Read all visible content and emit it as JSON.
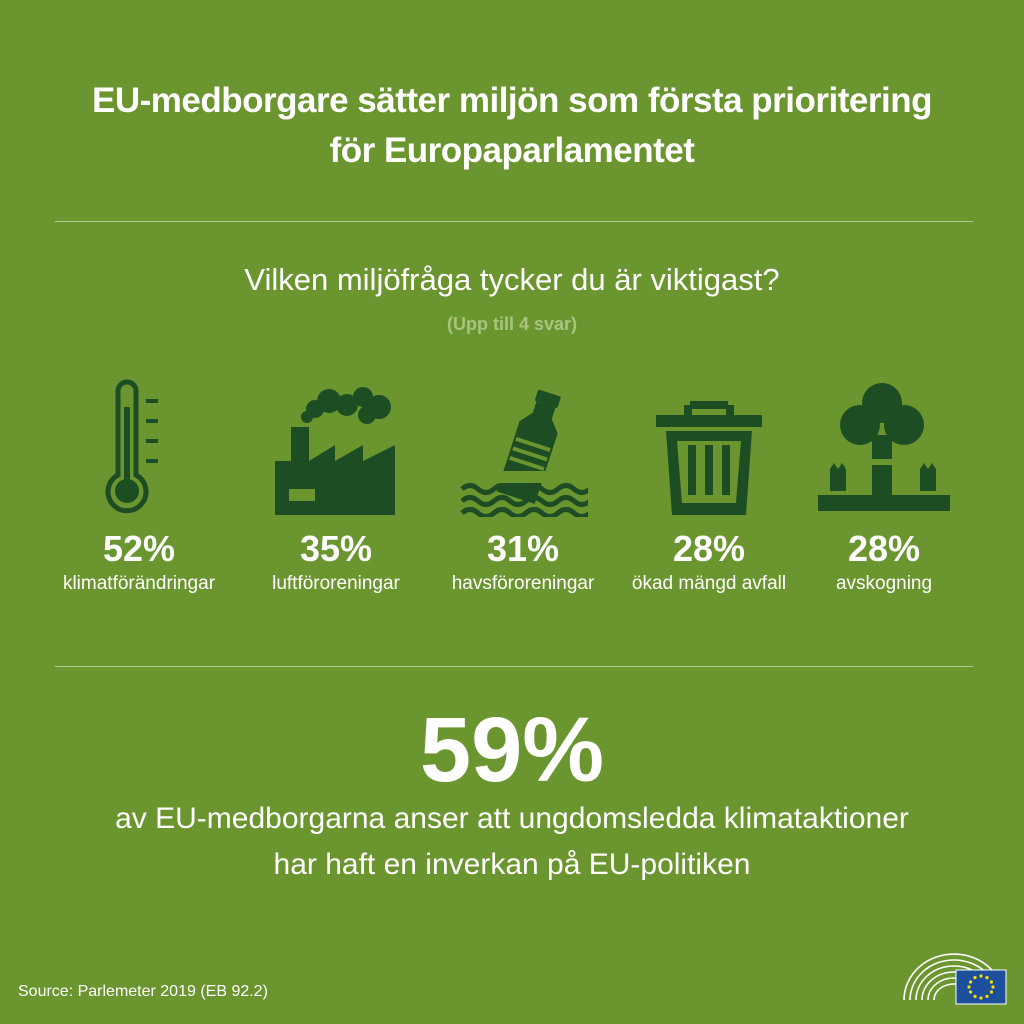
{
  "header": {
    "title_line1": "EU-medborgare sätter miljön som första prioritering",
    "title_line2": "för Europaparlamentet"
  },
  "question": {
    "text": "Vilken miljöfråga tycker du är viktigast?",
    "note": "(Upp till 4 svar)"
  },
  "issues": [
    {
      "percent": "52%",
      "label": "klimatförändringar",
      "icon": "thermometer-icon"
    },
    {
      "percent": "35%",
      "label": "luftföroreningar",
      "icon": "factory-icon"
    },
    {
      "percent": "31%",
      "label": "havsföroreningar",
      "icon": "bottle-in-water-icon"
    },
    {
      "percent": "28%",
      "label": "ökad mängd avfall",
      "icon": "trash-bin-icon"
    },
    {
      "percent": "28%",
      "label": "avskogning",
      "icon": "tree-stumps-icon"
    }
  ],
  "highlight": {
    "percent": "59%",
    "text_line1": "av EU-medborgarna anser att ungdomsledda klimataktioner",
    "text_line2": "har haft en inverkan på EU-politiken"
  },
  "footer": {
    "source": "Source: Parlemeter 2019 (EB 92.2)",
    "logo_icon": "european-parliament-logo-icon"
  },
  "colors": {
    "background": "#6b952f",
    "icon": "#1d4d23",
    "note": "#a9c47e",
    "eu_flag": "#1e4f9c",
    "eu_stars": "#ffdd00"
  }
}
